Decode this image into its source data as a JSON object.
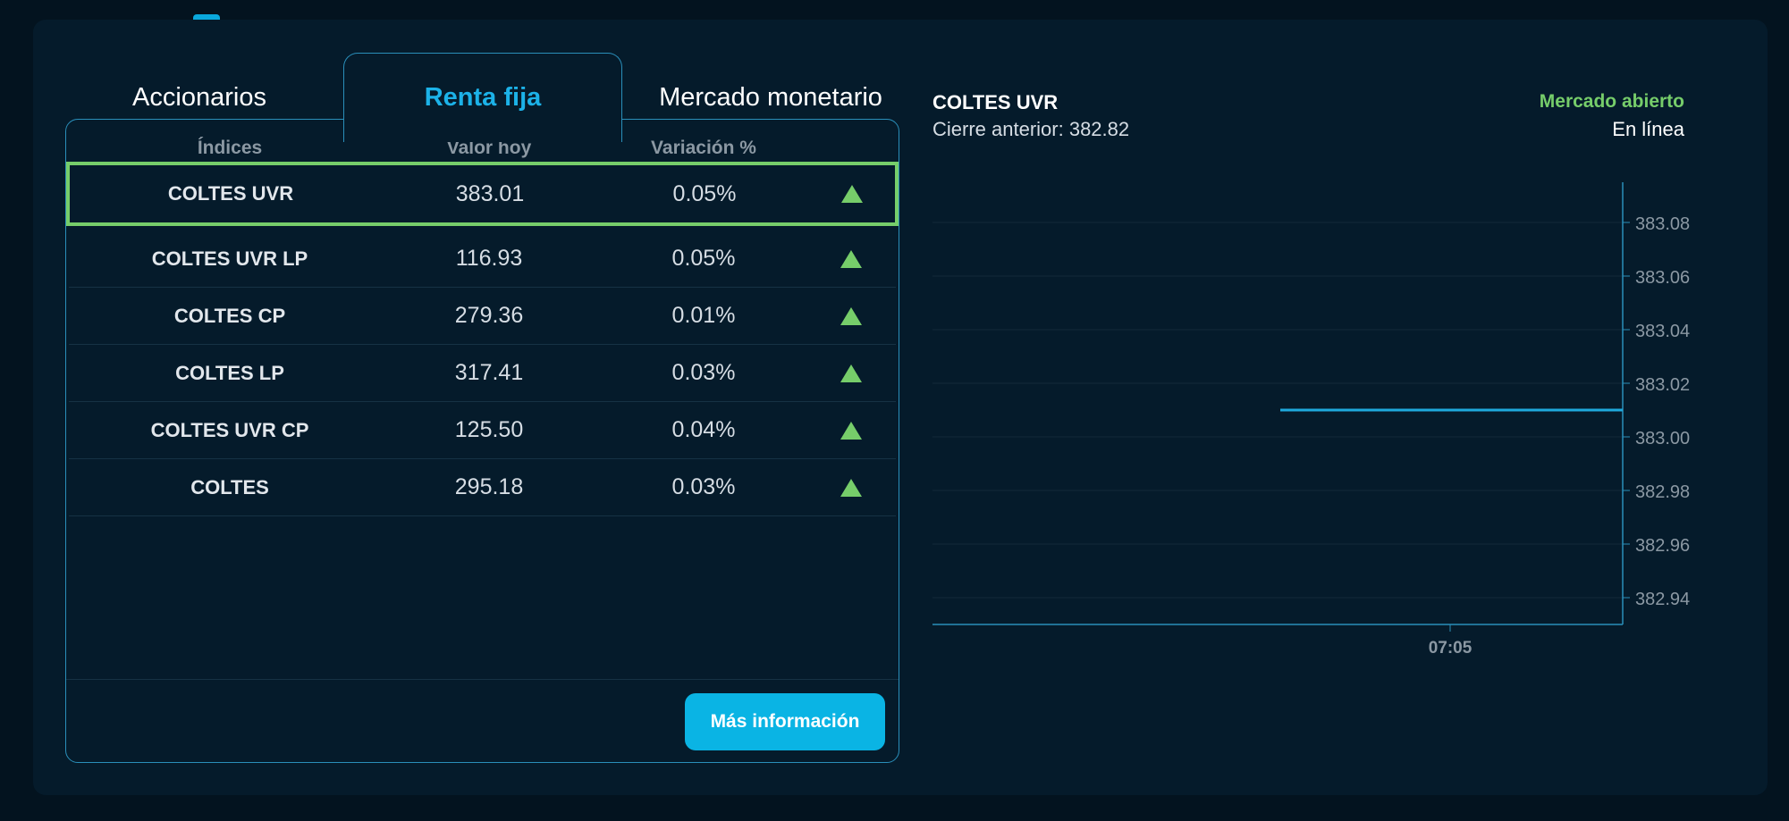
{
  "tabs": [
    {
      "label": "Accionarios",
      "active": false
    },
    {
      "label": "Renta fija",
      "active": true
    },
    {
      "label": "Mercado monetario",
      "active": false
    }
  ],
  "table": {
    "headers": [
      "Índices",
      "Valor hoy",
      "Variación %"
    ],
    "rows": [
      {
        "name": "COLTES UVR",
        "value": "383.01",
        "variation": "0.05%",
        "trend": "up",
        "selected": true
      },
      {
        "name": "COLTES UVR LP",
        "value": "116.93",
        "variation": "0.05%",
        "trend": "up"
      },
      {
        "name": "COLTES CP",
        "value": "279.36",
        "variation": "0.01%",
        "trend": "up"
      },
      {
        "name": "COLTES LP",
        "value": "317.41",
        "variation": "0.03%",
        "trend": "up"
      },
      {
        "name": "COLTES UVR CP",
        "value": "125.50",
        "variation": "0.04%",
        "trend": "up"
      },
      {
        "name": "COLTES",
        "value": "295.18",
        "variation": "0.03%",
        "trend": "up"
      }
    ],
    "more_button": "Más información"
  },
  "chart_header": {
    "title": "COLTES UVR",
    "previous_close": "Cierre anterior: 382.82",
    "market_status": "Mercado abierto",
    "connection": "En línea"
  },
  "colors": {
    "accent": "#1cb2e8",
    "positive": "#76cd6a",
    "background": "#051b2b",
    "line": "#1ea9dd"
  },
  "chart_data": {
    "type": "line",
    "title": "COLTES UVR",
    "xlabel": "",
    "ylabel": "",
    "x_ticks": [
      "07:05"
    ],
    "y_ticks": [
      382.94,
      382.96,
      382.98,
      383.0,
      383.02,
      383.04,
      383.06,
      383.08
    ],
    "ylim": [
      382.93,
      383.095
    ],
    "series": [
      {
        "values": [
          383.01,
          383.01
        ]
      }
    ],
    "grid": true,
    "legend": "none"
  }
}
